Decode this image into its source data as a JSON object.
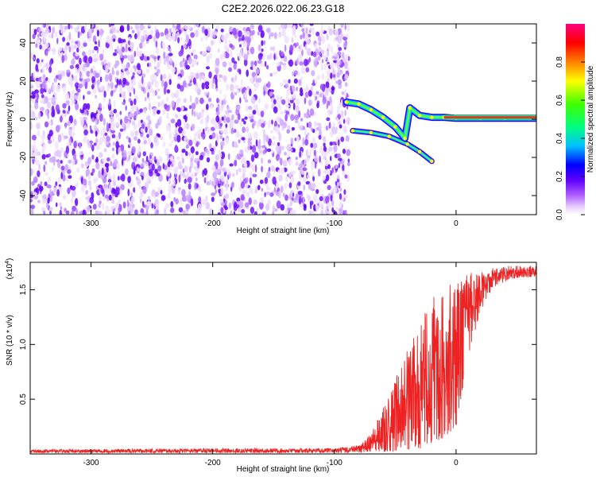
{
  "title": "C2E2.2026.022.06.23.G18",
  "chart_data": [
    {
      "type": "heatmap",
      "title": "C2E2.2026.022.06.23.G18",
      "xlabel": "Height of straight line (km)",
      "ylabel": "Frequency (Hz)",
      "xlim": [
        -350,
        66
      ],
      "ylim": [
        -50,
        50
      ],
      "x_ticks": [
        -300,
        -200,
        -100,
        0
      ],
      "x_tick_labels": [
        "-300",
        "-200",
        "-100",
        "0"
      ],
      "y_ticks": [
        -40,
        -20,
        0,
        20,
        40
      ],
      "y_tick_labels": [
        "-40",
        "-20",
        "0",
        "20",
        "40"
      ],
      "colorbar": {
        "label": "Normalized spectral amplitude",
        "range": [
          0,
          1
        ],
        "ticks": [
          0.0,
          0.2,
          0.4,
          0.6,
          0.8
        ],
        "tick_labels": [
          "0.0",
          "0.2",
          "0.4",
          "0.6",
          "0.8"
        ],
        "colors": [
          "#ffffff",
          "#c070ff",
          "#6000ff",
          "#0000ff",
          "#00c0ff",
          "#00ff80",
          "#40ff00",
          "#ffff00",
          "#ff8000",
          "#ff0000",
          "#ff0080"
        ]
      },
      "noise_region": {
        "x_range": [
          -350,
          -88
        ],
        "y_range": [
          -50,
          50
        ]
      },
      "signal_track": [
        {
          "x": -90,
          "y": 9
        },
        {
          "x": -80,
          "y": 8
        },
        {
          "x": -70,
          "y": 5
        },
        {
          "x": -60,
          "y": 1
        },
        {
          "x": -50,
          "y": -4
        },
        {
          "x": -42,
          "y": -10
        },
        {
          "x": -38,
          "y": 6
        },
        {
          "x": -30,
          "y": 2
        },
        {
          "x": -20,
          "y": 1
        },
        {
          "x": -10,
          "y": 1
        },
        {
          "x": 0,
          "y": 0.5
        },
        {
          "x": 20,
          "y": 0.5
        },
        {
          "x": 40,
          "y": 0.5
        },
        {
          "x": 66,
          "y": 0.5
        }
      ],
      "secondary_track": [
        {
          "x": -85,
          "y": -6
        },
        {
          "x": -70,
          "y": -7
        },
        {
          "x": -55,
          "y": -9
        },
        {
          "x": -40,
          "y": -13
        },
        {
          "x": -30,
          "y": -17
        },
        {
          "x": -20,
          "y": -22
        }
      ],
      "grid": false
    },
    {
      "type": "line",
      "xlabel": "Height of straight line (km)",
      "ylabel": "SNR (10 * v/v)",
      "y_scale_label": "(x10",
      "y_scale_exponent": "4",
      "xlim": [
        -350,
        66
      ],
      "ylim": [
        0,
        1.75
      ],
      "x_ticks": [
        -300,
        -200,
        -100,
        0
      ],
      "x_tick_labels": [
        "-300",
        "-200",
        "-100",
        "0"
      ],
      "y_ticks": [
        0.5,
        1.0,
        1.5
      ],
      "y_tick_labels": [
        "0.5",
        "1.0",
        "1.5"
      ],
      "series_color": "#ee2222",
      "envelope": [
        {
          "x": -350,
          "lo": 0.01,
          "hi": 0.04
        },
        {
          "x": -200,
          "lo": 0.01,
          "hi": 0.05
        },
        {
          "x": -100,
          "lo": 0.01,
          "hi": 0.05
        },
        {
          "x": -80,
          "lo": 0.01,
          "hi": 0.08
        },
        {
          "x": -70,
          "lo": 0.02,
          "hi": 0.18
        },
        {
          "x": -60,
          "lo": 0.02,
          "hi": 0.45
        },
        {
          "x": -50,
          "lo": 0.02,
          "hi": 0.68
        },
        {
          "x": -40,
          "lo": 0.04,
          "hi": 0.98
        },
        {
          "x": -30,
          "lo": 0.05,
          "hi": 1.2
        },
        {
          "x": -20,
          "lo": 0.08,
          "hi": 1.42
        },
        {
          "x": -10,
          "lo": 0.15,
          "hi": 1.55
        },
        {
          "x": 0,
          "lo": 0.25,
          "hi": 1.6
        },
        {
          "x": 10,
          "lo": 0.9,
          "hi": 1.65
        },
        {
          "x": 20,
          "lo": 1.3,
          "hi": 1.68
        },
        {
          "x": 30,
          "lo": 1.52,
          "hi": 1.7
        },
        {
          "x": 45,
          "lo": 1.6,
          "hi": 1.72
        },
        {
          "x": 66,
          "lo": 1.62,
          "hi": 1.72
        }
      ],
      "grid": false
    }
  ]
}
